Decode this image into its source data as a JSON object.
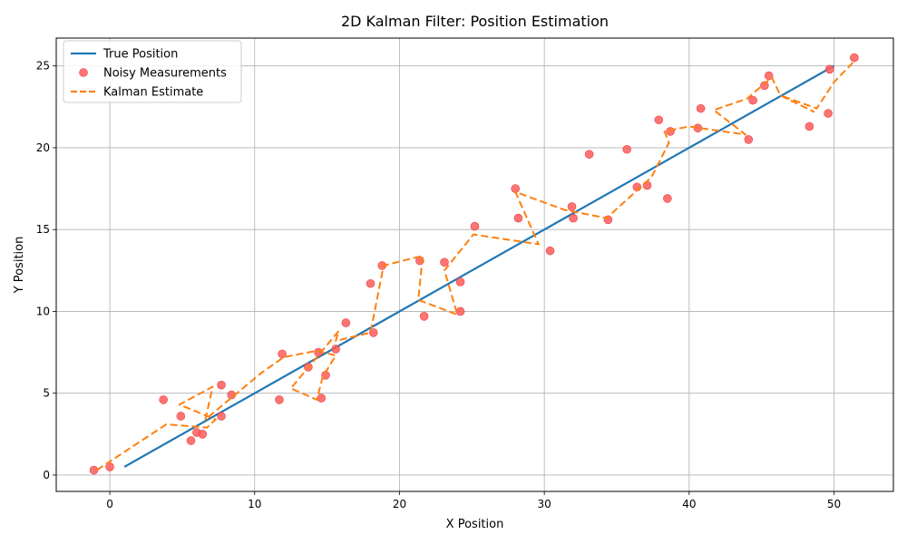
{
  "chart_data": {
    "type": "line",
    "title": "2D Kalman Filter: Position Estimation",
    "xlabel": "X Position",
    "ylabel": "Y Position",
    "xlim": [
      -3.7,
      54.1
    ],
    "ylim": [
      -1.0,
      26.7
    ],
    "xticks": [
      0,
      10,
      20,
      30,
      40,
      50
    ],
    "yticks": [
      0,
      5,
      10,
      15,
      20,
      25
    ],
    "grid": true,
    "legend_position": "top-left",
    "series": [
      {
        "name": "True Position",
        "style": "solid-line",
        "color": "#1f77b4",
        "points": [
          [
            1.0,
            0.5
          ],
          [
            50.0,
            25.0
          ]
        ]
      },
      {
        "name": "Noisy Measurements",
        "style": "markers",
        "color": "#ff5a5a",
        "points": [
          [
            -1.1,
            0.3
          ],
          [
            0.0,
            0.5
          ],
          [
            3.7,
            4.6
          ],
          [
            4.9,
            3.6
          ],
          [
            5.6,
            2.1
          ],
          [
            6.0,
            2.6
          ],
          [
            6.4,
            2.5
          ],
          [
            7.7,
            5.5
          ],
          [
            7.7,
            3.6
          ],
          [
            8.4,
            4.9
          ],
          [
            11.7,
            4.6
          ],
          [
            11.9,
            7.4
          ],
          [
            13.7,
            6.6
          ],
          [
            14.4,
            7.5
          ],
          [
            14.6,
            4.7
          ],
          [
            14.9,
            6.1
          ],
          [
            15.6,
            7.7
          ],
          [
            16.3,
            9.3
          ],
          [
            18.0,
            11.7
          ],
          [
            18.2,
            8.7
          ],
          [
            18.8,
            12.8
          ],
          [
            21.4,
            13.1
          ],
          [
            21.7,
            9.7
          ],
          [
            23.1,
            13.0
          ],
          [
            24.2,
            11.8
          ],
          [
            24.2,
            10.0
          ],
          [
            25.2,
            15.2
          ],
          [
            28.0,
            17.5
          ],
          [
            28.2,
            15.7
          ],
          [
            30.4,
            13.7
          ],
          [
            31.9,
            16.4
          ],
          [
            32.0,
            15.7
          ],
          [
            33.1,
            19.6
          ],
          [
            34.4,
            15.6
          ],
          [
            35.7,
            19.9
          ],
          [
            36.4,
            17.6
          ],
          [
            37.1,
            17.7
          ],
          [
            37.9,
            21.7
          ],
          [
            38.5,
            16.9
          ],
          [
            38.7,
            21.0
          ],
          [
            40.6,
            21.2
          ],
          [
            40.8,
            22.4
          ],
          [
            44.1,
            20.5
          ],
          [
            44.4,
            22.9
          ],
          [
            45.2,
            23.8
          ],
          [
            45.5,
            24.4
          ],
          [
            48.3,
            21.3
          ],
          [
            49.6,
            22.1
          ],
          [
            49.7,
            24.8
          ],
          [
            51.4,
            25.5
          ]
        ]
      },
      {
        "name": "Kalman Estimate",
        "style": "dashed-line",
        "color": "#ff7f0e",
        "points": [
          [
            -0.9,
            0.3
          ],
          [
            3.9,
            3.1
          ],
          [
            6.7,
            2.9
          ],
          [
            7.3,
            3.4
          ],
          [
            4.8,
            4.3
          ],
          [
            7.1,
            5.4
          ],
          [
            6.6,
            3.4
          ],
          [
            10.4,
            6.2
          ],
          [
            12.0,
            7.2
          ],
          [
            14.3,
            7.6
          ],
          [
            15.6,
            7.3
          ],
          [
            14.7,
            6.0
          ],
          [
            14.3,
            4.6
          ],
          [
            12.5,
            5.3
          ],
          [
            15.8,
            8.8
          ],
          [
            15.6,
            8.2
          ],
          [
            18.0,
            8.7
          ],
          [
            18.9,
            12.8
          ],
          [
            21.6,
            13.4
          ],
          [
            21.3,
            10.7
          ],
          [
            24.0,
            9.8
          ],
          [
            23.1,
            12.5
          ],
          [
            25.1,
            14.7
          ],
          [
            29.6,
            14.1
          ],
          [
            28.0,
            17.3
          ],
          [
            31.4,
            16.2
          ],
          [
            34.3,
            15.7
          ],
          [
            37.4,
            18.2
          ],
          [
            38.6,
            20.3
          ],
          [
            38.3,
            21.0
          ],
          [
            40.0,
            21.3
          ],
          [
            43.9,
            20.8
          ],
          [
            41.7,
            22.3
          ],
          [
            44.0,
            23.0
          ],
          [
            45.7,
            24.3
          ],
          [
            46.3,
            23.2
          ],
          [
            48.6,
            22.2
          ],
          [
            46.3,
            23.2
          ],
          [
            48.8,
            22.4
          ],
          [
            50.0,
            24.0
          ],
          [
            51.3,
            25.2
          ]
        ]
      }
    ]
  }
}
